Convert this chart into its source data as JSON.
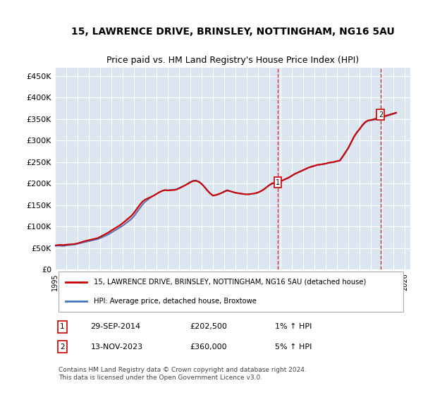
{
  "title": "15, LAWRENCE DRIVE, BRINSLEY, NOTTINGHAM, NG16 5AU",
  "subtitle": "Price paid vs. HM Land Registry's House Price Index (HPI)",
  "ylabel_ticks": [
    "£0",
    "£50K",
    "£100K",
    "£150K",
    "£200K",
    "£250K",
    "£300K",
    "£350K",
    "£400K",
    "£450K"
  ],
  "ytick_vals": [
    0,
    50000,
    100000,
    150000,
    200000,
    250000,
    300000,
    350000,
    400000,
    450000
  ],
  "ylim": [
    0,
    470000
  ],
  "xlim_start": 1995.0,
  "xlim_end": 2026.5,
  "background_color": "#ffffff",
  "plot_bg_color": "#dce6f1",
  "grid_color": "#ffffff",
  "line1_color": "#cc0000",
  "line2_color": "#4472c4",
  "marker1_date": 2014.75,
  "marker1_value": 202500,
  "marker1_label": "1",
  "marker2_date": 2023.87,
  "marker2_value": 360000,
  "marker2_label": "2",
  "legend_line1": "15, LAWRENCE DRIVE, BRINSLEY, NOTTINGHAM, NG16 5AU (detached house)",
  "legend_line2": "HPI: Average price, detached house, Broxtowe",
  "note1_label": "1",
  "note1_date": "29-SEP-2014",
  "note1_price": "£202,500",
  "note1_hpi": "1% ↑ HPI",
  "note2_label": "2",
  "note2_date": "13-NOV-2023",
  "note2_price": "£360,000",
  "note2_hpi": "5% ↑ HPI",
  "footer": "Contains HM Land Registry data © Crown copyright and database right 2024.\nThis data is licensed under the Open Government Licence v3.0.",
  "title_fontsize": 10,
  "subtitle_fontsize": 9,
  "tick_fontsize": 8,
  "hpi_data": [
    [
      1995.0,
      55000
    ],
    [
      1995.25,
      55500
    ],
    [
      1995.5,
      55200
    ],
    [
      1995.75,
      54800
    ],
    [
      1996.0,
      56000
    ],
    [
      1996.25,
      57000
    ],
    [
      1996.5,
      57500
    ],
    [
      1996.75,
      58200
    ],
    [
      1997.0,
      60000
    ],
    [
      1997.25,
      61500
    ],
    [
      1997.5,
      63000
    ],
    [
      1997.75,
      64500
    ],
    [
      1998.0,
      66000
    ],
    [
      1998.25,
      67500
    ],
    [
      1998.5,
      69000
    ],
    [
      1998.75,
      70500
    ],
    [
      1999.0,
      73000
    ],
    [
      1999.25,
      76000
    ],
    [
      1999.5,
      79000
    ],
    [
      1999.75,
      82000
    ],
    [
      2000.0,
      86000
    ],
    [
      2000.25,
      90000
    ],
    [
      2000.5,
      94000
    ],
    [
      2000.75,
      98000
    ],
    [
      2001.0,
      102000
    ],
    [
      2001.25,
      107000
    ],
    [
      2001.5,
      112000
    ],
    [
      2001.75,
      117000
    ],
    [
      2002.0,
      124000
    ],
    [
      2002.25,
      133000
    ],
    [
      2002.5,
      142000
    ],
    [
      2002.75,
      151000
    ],
    [
      2003.0,
      158000
    ],
    [
      2003.25,
      163000
    ],
    [
      2003.5,
      168000
    ],
    [
      2003.75,
      172000
    ],
    [
      2004.0,
      176000
    ],
    [
      2004.25,
      180000
    ],
    [
      2004.5,
      183000
    ],
    [
      2004.75,
      185000
    ],
    [
      2005.0,
      185000
    ],
    [
      2005.25,
      185500
    ],
    [
      2005.5,
      186000
    ],
    [
      2005.75,
      187000
    ],
    [
      2006.0,
      190000
    ],
    [
      2006.25,
      193000
    ],
    [
      2006.5,
      196000
    ],
    [
      2006.75,
      200000
    ],
    [
      2007.0,
      204000
    ],
    [
      2007.25,
      207000
    ],
    [
      2007.5,
      207500
    ],
    [
      2007.75,
      205000
    ],
    [
      2008.0,
      200000
    ],
    [
      2008.25,
      193000
    ],
    [
      2008.5,
      185000
    ],
    [
      2008.75,
      178000
    ],
    [
      2009.0,
      172000
    ],
    [
      2009.25,
      173000
    ],
    [
      2009.5,
      175000
    ],
    [
      2009.75,
      178000
    ],
    [
      2010.0,
      182000
    ],
    [
      2010.25,
      185000
    ],
    [
      2010.5,
      183000
    ],
    [
      2010.75,
      181000
    ],
    [
      2011.0,
      179000
    ],
    [
      2011.25,
      178000
    ],
    [
      2011.5,
      177000
    ],
    [
      2011.75,
      176000
    ],
    [
      2012.0,
      175000
    ],
    [
      2012.25,
      175500
    ],
    [
      2012.5,
      176000
    ],
    [
      2012.75,
      177000
    ],
    [
      2013.0,
      179000
    ],
    [
      2013.25,
      182000
    ],
    [
      2013.5,
      186000
    ],
    [
      2013.75,
      191000
    ],
    [
      2014.0,
      196000
    ],
    [
      2014.25,
      200000
    ],
    [
      2014.5,
      202000
    ],
    [
      2014.75,
      202500
    ],
    [
      2015.0,
      205000
    ],
    [
      2015.25,
      208000
    ],
    [
      2015.5,
      211000
    ],
    [
      2015.75,
      214000
    ],
    [
      2016.0,
      218000
    ],
    [
      2016.25,
      222000
    ],
    [
      2016.5,
      225000
    ],
    [
      2016.75,
      228000
    ],
    [
      2017.0,
      231000
    ],
    [
      2017.25,
      234000
    ],
    [
      2017.5,
      237000
    ],
    [
      2017.75,
      239000
    ],
    [
      2018.0,
      241000
    ],
    [
      2018.25,
      243000
    ],
    [
      2018.5,
      244000
    ],
    [
      2018.75,
      245000
    ],
    [
      2019.0,
      246000
    ],
    [
      2019.25,
      248000
    ],
    [
      2019.5,
      249000
    ],
    [
      2019.75,
      250000
    ],
    [
      2020.0,
      252000
    ],
    [
      2020.25,
      253000
    ],
    [
      2020.5,
      262000
    ],
    [
      2020.75,
      272000
    ],
    [
      2021.0,
      282000
    ],
    [
      2021.25,
      295000
    ],
    [
      2021.5,
      308000
    ],
    [
      2021.75,
      318000
    ],
    [
      2022.0,
      326000
    ],
    [
      2022.25,
      335000
    ],
    [
      2022.5,
      342000
    ],
    [
      2022.75,
      346000
    ],
    [
      2023.0,
      347000
    ],
    [
      2023.25,
      348000
    ],
    [
      2023.5,
      350000
    ],
    [
      2023.75,
      352000
    ],
    [
      2024.0,
      354000
    ],
    [
      2024.25,
      356000
    ],
    [
      2024.5,
      358000
    ],
    [
      2024.75,
      360000
    ],
    [
      2025.0,
      362000
    ],
    [
      2025.25,
      364000
    ]
  ],
  "pp_data": [
    [
      1995.0,
      56000
    ],
    [
      1995.25,
      57000
    ],
    [
      1995.5,
      57500
    ],
    [
      1995.75,
      57000
    ],
    [
      1996.0,
      58000
    ],
    [
      1996.25,
      58500
    ],
    [
      1996.5,
      59000
    ],
    [
      1996.75,
      59500
    ],
    [
      1997.0,
      61000
    ],
    [
      1997.25,
      63000
    ],
    [
      1997.5,
      65000
    ],
    [
      1997.75,
      67000
    ],
    [
      1998.0,
      68500
    ],
    [
      1998.25,
      70000
    ],
    [
      1998.5,
      71500
    ],
    [
      1998.75,
      73000
    ],
    [
      1999.0,
      76000
    ],
    [
      1999.25,
      79500
    ],
    [
      1999.5,
      83000
    ],
    [
      1999.75,
      86500
    ],
    [
      2000.0,
      91000
    ],
    [
      2000.25,
      95000
    ],
    [
      2000.5,
      99000
    ],
    [
      2000.75,
      103000
    ],
    [
      2001.0,
      108000
    ],
    [
      2001.25,
      113500
    ],
    [
      2001.5,
      119000
    ],
    [
      2001.75,
      124500
    ],
    [
      2002.0,
      132000
    ],
    [
      2002.25,
      141000
    ],
    [
      2002.5,
      150000
    ],
    [
      2002.75,
      158000
    ],
    [
      2003.0,
      163000
    ],
    [
      2003.25,
      166000
    ],
    [
      2003.5,
      169000
    ],
    [
      2003.75,
      172000
    ],
    [
      2004.0,
      176000
    ],
    [
      2004.25,
      180000
    ],
    [
      2004.5,
      183000
    ],
    [
      2004.75,
      185000
    ],
    [
      2005.0,
      184000
    ],
    [
      2005.25,
      184500
    ],
    [
      2005.5,
      185000
    ],
    [
      2005.75,
      186000
    ],
    [
      2006.0,
      189000
    ],
    [
      2006.25,
      192000
    ],
    [
      2006.5,
      195500
    ],
    [
      2006.75,
      199000
    ],
    [
      2007.0,
      203000
    ],
    [
      2007.25,
      206000
    ],
    [
      2007.5,
      206500
    ],
    [
      2007.75,
      204000
    ],
    [
      2008.0,
      199000
    ],
    [
      2008.25,
      192000
    ],
    [
      2008.5,
      184000
    ],
    [
      2008.75,
      177000
    ],
    [
      2009.0,
      172000
    ],
    [
      2009.25,
      173500
    ],
    [
      2009.5,
      175500
    ],
    [
      2009.75,
      178000
    ],
    [
      2010.0,
      181000
    ],
    [
      2010.25,
      184000
    ],
    [
      2010.5,
      182500
    ],
    [
      2010.75,
      180500
    ],
    [
      2011.0,
      178500
    ],
    [
      2011.25,
      177500
    ],
    [
      2011.5,
      176500
    ],
    [
      2011.75,
      175500
    ],
    [
      2012.0,
      175000
    ],
    [
      2012.25,
      175500
    ],
    [
      2012.5,
      176500
    ],
    [
      2012.75,
      177500
    ],
    [
      2013.0,
      179500
    ],
    [
      2013.25,
      182500
    ],
    [
      2013.5,
      186500
    ],
    [
      2013.75,
      191500
    ],
    [
      2014.0,
      196500
    ],
    [
      2014.25,
      200500
    ],
    [
      2014.5,
      202200
    ],
    [
      2014.75,
      202500
    ],
    [
      2015.0,
      205500
    ],
    [
      2015.25,
      208500
    ],
    [
      2015.5,
      211500
    ],
    [
      2015.75,
      214500
    ],
    [
      2016.0,
      218500
    ],
    [
      2016.25,
      222500
    ],
    [
      2016.5,
      225500
    ],
    [
      2016.75,
      228500
    ],
    [
      2017.0,
      231500
    ],
    [
      2017.25,
      234500
    ],
    [
      2017.5,
      237500
    ],
    [
      2017.75,
      239500
    ],
    [
      2018.0,
      241500
    ],
    [
      2018.25,
      243500
    ],
    [
      2018.5,
      244500
    ],
    [
      2018.75,
      245500
    ],
    [
      2019.0,
      246500
    ],
    [
      2019.25,
      248500
    ],
    [
      2019.5,
      249500
    ],
    [
      2019.75,
      250500
    ],
    [
      2020.0,
      252500
    ],
    [
      2020.25,
      253500
    ],
    [
      2020.5,
      263000
    ],
    [
      2020.75,
      273000
    ],
    [
      2021.0,
      283000
    ],
    [
      2021.25,
      296000
    ],
    [
      2021.5,
      309000
    ],
    [
      2021.75,
      319000
    ],
    [
      2022.0,
      327000
    ],
    [
      2022.25,
      336000
    ],
    [
      2022.5,
      343000
    ],
    [
      2022.75,
      347000
    ],
    [
      2023.0,
      348000
    ],
    [
      2023.25,
      349500
    ],
    [
      2023.5,
      351500
    ],
    [
      2023.75,
      353000
    ],
    [
      2024.0,
      355000
    ],
    [
      2024.25,
      357000
    ],
    [
      2024.5,
      359000
    ],
    [
      2024.75,
      361000
    ],
    [
      2025.0,
      363000
    ],
    [
      2025.25,
      365000
    ]
  ]
}
